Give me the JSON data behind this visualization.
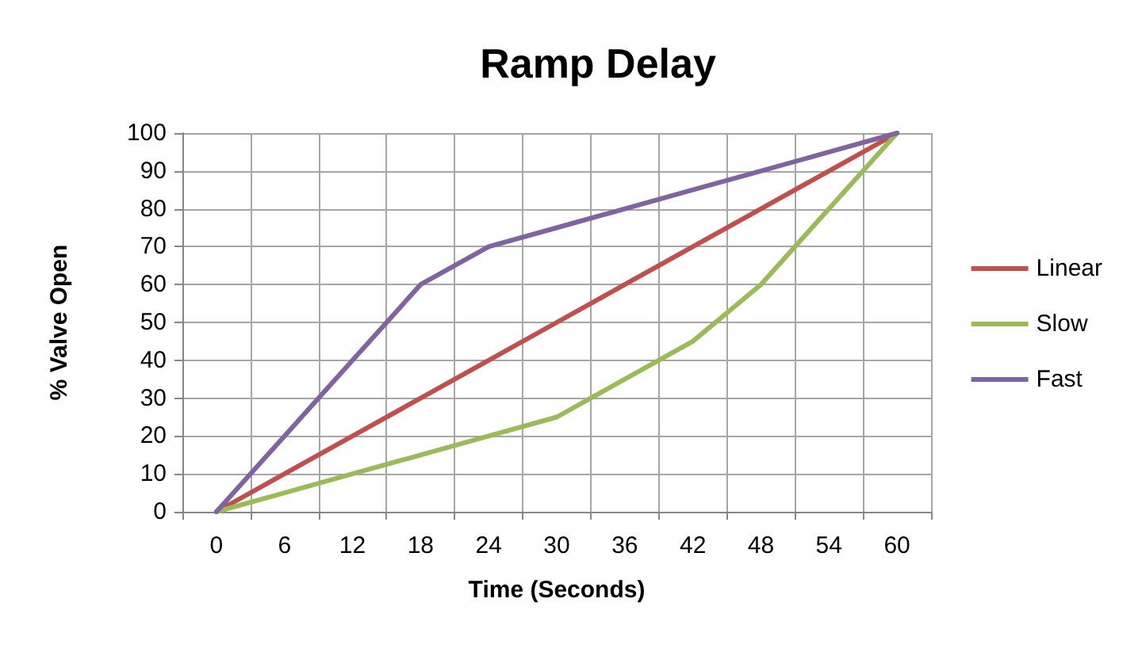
{
  "chart_data": {
    "type": "line",
    "title": "Ramp Delay",
    "xlabel": "Time (Seconds)",
    "ylabel": "% Valve Open",
    "categories": [
      "0",
      "6",
      "12",
      "18",
      "24",
      "30",
      "36",
      "42",
      "48",
      "54",
      "60"
    ],
    "series": [
      {
        "name": "Linear",
        "color": "#c0504d",
        "values": [
          0,
          10,
          20,
          30,
          40,
          50,
          60,
          70,
          80,
          90,
          100
        ]
      },
      {
        "name": "Slow",
        "color": "#9bbb59",
        "values": [
          0,
          5,
          10,
          15,
          20,
          25,
          35,
          45,
          60,
          80,
          100
        ]
      },
      {
        "name": "Fast",
        "color": "#8064a2",
        "values": [
          0,
          20,
          40,
          60,
          70,
          75,
          80,
          85,
          90,
          95,
          100
        ]
      }
    ],
    "ylim": [
      0,
      100
    ],
    "yticks": [
      0,
      10,
      20,
      30,
      40,
      50,
      60,
      70,
      80,
      90,
      100
    ],
    "grid": true,
    "legend": "right",
    "marker": "none",
    "line_style": "solid"
  }
}
